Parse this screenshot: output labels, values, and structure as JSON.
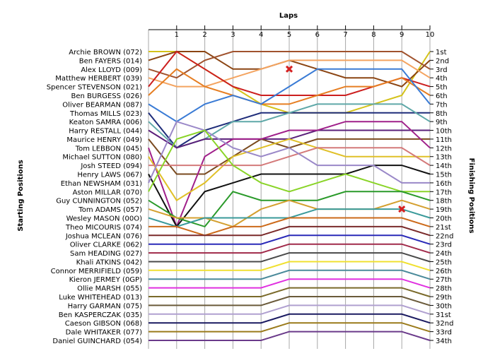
{
  "chart_data": {
    "type": "line",
    "title": "",
    "xlabel": "Laps",
    "ylabel_left": "Starting Positions",
    "ylabel_right": "Finishing Positions",
    "laps": [
      "1",
      "2",
      "3",
      "4",
      "5",
      "6",
      "7",
      "8",
      "9",
      "10"
    ],
    "grid": true,
    "drivers": [
      "Archie BROWN (072)",
      "Ben FAYERS (014)",
      "Alex LLOYD (009)",
      "Matthew HERBERT (039)",
      "Spencer STEVENSON (021)",
      "Ben BURGESS (026)",
      "Oliver BEARMAN (087)",
      "Thomas MILLS (023)",
      "Keaton SAMRA (006)",
      "Harry RESTALL (044)",
      "Maurice HENRY (049)",
      "Tom LEBBON (045)",
      "Michael SUTTON (080)",
      "Josh STEED (094)",
      "Henry LAWS (067)",
      "Ethan NEWSHAM (031)",
      "Aston MILLAR (070)",
      "Guy CUNNINGTON (052)",
      "Tom ADAMS (057)",
      "Wesley MASON (00O)",
      "Theo MICOURIS (074)",
      "Joshua MCLEAN (076)",
      "Oliver CLARKE (062)",
      "Sam HEADING (027)",
      "Khali ATKINS (042)",
      "Connor MERRIFIELD (059)",
      "Kieron JERMEY (0GP)",
      "Ollie MARSH (055)",
      "Luke WHITEHEAD (013)",
      "Harry GARMAN (075)",
      "Ben KASPERCZAK (035)",
      "Caeson GIBSON (068)",
      "Dale WHITAKER (077)",
      "Daniel GUINCHARD (054)"
    ],
    "finish_labels": [
      "1st",
      "2nd",
      "3rd",
      "4th",
      "5th",
      "6th",
      "7th",
      "8th",
      "9th",
      "10th",
      "11th",
      "12th",
      "13th",
      "14th",
      "15th",
      "16th",
      "17th",
      "18th",
      "19th",
      "20th",
      "21st",
      "22nd",
      "23rd",
      "24th",
      "25th",
      "26th",
      "27th",
      "28th",
      "29th",
      "30th",
      "31st",
      "32nd",
      "33rd",
      "34th"
    ],
    "series": [
      {
        "values": [
          1,
          3,
          5,
          7,
          8,
          8,
          8,
          7,
          6,
          1
        ],
        "color": "#d4c21a"
      },
      {
        "values": [
          1,
          1,
          3,
          3,
          2,
          3,
          4,
          4,
          5,
          2
        ],
        "color": "#8b4513"
      },
      {
        "values": [
          4,
          2,
          1,
          1,
          1,
          1,
          1,
          1,
          1,
          3
        ],
        "color": "#a0522d"
      },
      {
        "values": [
          5,
          5,
          4,
          3,
          2,
          2,
          2,
          2,
          2,
          4
        ],
        "color": "#f4a460"
      },
      {
        "values": [
          1,
          3,
          5,
          6,
          6,
          6,
          6,
          5,
          4,
          5
        ],
        "color": "#cc1f1f"
      },
      {
        "values": [
          3,
          5,
          6,
          7,
          7,
          6,
          5,
          5,
          4,
          6
        ],
        "color": "#e67e22"
      },
      {
        "values": [
          9,
          7,
          6,
          7,
          5,
          3,
          3,
          3,
          3,
          7
        ],
        "color": "#3a7bd5"
      },
      {
        "values": [
          12,
          10,
          9,
          8,
          8,
          8,
          8,
          8,
          8,
          8
        ],
        "color": "#1f2d7a"
      },
      {
        "values": [
          12,
          11,
          9,
          9,
          8,
          7,
          7,
          7,
          7,
          9
        ],
        "color": "#5fa8a8"
      },
      {
        "values": [
          12,
          11,
          11,
          11,
          11,
          10,
          10,
          10,
          10,
          10
        ],
        "color": "#5a1f7a"
      },
      {
        "values": [
          15,
          15,
          13,
          11,
          12,
          11,
          11,
          11,
          11,
          11
        ],
        "color": "#7a4a1f"
      },
      {
        "values": [
          21,
          13,
          11,
          11,
          10,
          10,
          9,
          9,
          9,
          12
        ],
        "color": "#a0208a"
      },
      {
        "values": [
          18,
          16,
          13,
          12,
          11,
          12,
          13,
          13,
          13,
          13
        ],
        "color": "#e0c028"
      },
      {
        "values": [
          14,
          14,
          14,
          14,
          13,
          12,
          12,
          12,
          12,
          14
        ],
        "color": "#d47a7a"
      },
      {
        "values": [
          21,
          17,
          16,
          15,
          15,
          15,
          15,
          14,
          14,
          15
        ],
        "color": "#111111"
      },
      {
        "values": [
          9,
          10,
          12,
          13,
          12,
          14,
          14,
          14,
          16,
          16
        ],
        "color": "#9a88c8"
      },
      {
        "values": [
          11,
          10,
          14,
          16,
          17,
          16,
          15,
          16,
          17,
          17
        ],
        "color": "#8ad428"
      },
      {
        "values": [
          20,
          21,
          17,
          18,
          18,
          18,
          17,
          17,
          17,
          18
        ],
        "color": "#2a9a2a"
      },
      {
        "values": [
          20,
          20,
          21,
          19,
          18,
          19,
          19,
          19,
          18,
          19
        ],
        "color": "#d4a030"
      },
      {
        "values": [
          21,
          20,
          20,
          20,
          20,
          19,
          19,
          19,
          19,
          20
        ],
        "color": "#3a9a9a"
      },
      {
        "values": [
          21,
          22,
          21,
          21,
          20,
          20,
          20,
          20,
          20,
          21
        ],
        "color": "#cc6a1a"
      },
      {
        "values": [
          22,
          22,
          22,
          22,
          21,
          21,
          21,
          21,
          21,
          22
        ],
        "color": "#7a2a2a"
      },
      {
        "values": [
          23,
          23,
          23,
          23,
          22,
          22,
          22,
          22,
          22,
          23
        ],
        "color": "#2a2ab8"
      },
      {
        "values": [
          24,
          24,
          24,
          24,
          23,
          23,
          23,
          23,
          23,
          24
        ],
        "color": "#a02a4a"
      },
      {
        "values": [
          25,
          25,
          25,
          25,
          24,
          24,
          24,
          24,
          24,
          25
        ],
        "color": "#4a4a4a"
      },
      {
        "values": [
          26,
          26,
          26,
          26,
          25,
          25,
          25,
          25,
          25,
          26
        ],
        "color": "#f0e030"
      },
      {
        "values": [
          27,
          27,
          27,
          27,
          26,
          26,
          26,
          26,
          26,
          27
        ],
        "color": "#4a8a9a"
      },
      {
        "values": [
          28,
          28,
          28,
          28,
          27,
          27,
          27,
          27,
          27,
          28
        ],
        "color": "#e030e0"
      },
      {
        "values": [
          29,
          29,
          29,
          29,
          28,
          28,
          28,
          28,
          28,
          29
        ],
        "color": "#7a6a2a"
      },
      {
        "values": [
          30,
          30,
          30,
          30,
          29,
          29,
          29,
          29,
          29,
          30
        ],
        "color": "#6a5a3a"
      },
      {
        "values": [
          31,
          31,
          31,
          31,
          30,
          30,
          30,
          30,
          30,
          31
        ],
        "color": "#b0a0d0"
      },
      {
        "values": [
          32,
          32,
          32,
          32,
          31,
          31,
          31,
          31,
          31,
          32
        ],
        "color": "#1a1a60"
      },
      {
        "values": [
          33,
          33,
          33,
          33,
          32,
          32,
          32,
          32,
          32,
          33
        ],
        "color": "#9a7a1a"
      },
      {
        "values": [
          34,
          34,
          34,
          34,
          33,
          33,
          33,
          33,
          33,
          34
        ],
        "color": "#6a3a8a"
      }
    ],
    "retirements": [
      {
        "series": "Alex LLOYD (009)",
        "lap": 5,
        "position": 3,
        "color": "#22a022"
      },
      {
        "series": "Tom ADAMS (057)",
        "lap": 9,
        "position": 19,
        "color": "#22a022"
      }
    ],
    "grid_color": "#a8a8a8",
    "retired_marker_color": "#d62020"
  }
}
